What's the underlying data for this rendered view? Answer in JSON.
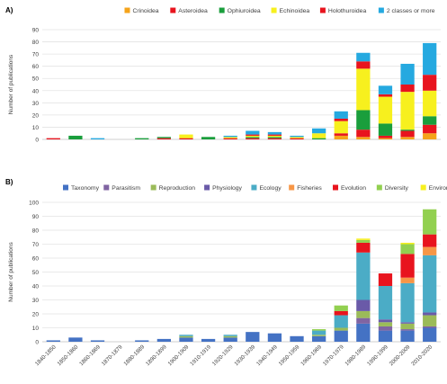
{
  "chart_data": [
    {
      "type": "bar",
      "stacked": true,
      "panel_label": "A)",
      "ylabel": "Number of publications",
      "ylim": [
        0,
        90
      ],
      "yticks": [
        0,
        10,
        20,
        30,
        40,
        50,
        60,
        70,
        80,
        90
      ],
      "grid": true,
      "legend_position": "top-right",
      "categories": [
        "1840-1850",
        "1850-1860",
        "1860-1869",
        "1870-1879",
        "1880-1889",
        "1890-1899",
        "1900-1909",
        "1910-1919",
        "1920-1929",
        "1930-1939",
        "1940-1949",
        "1950-1959",
        "1960-1969",
        "1970-1979",
        "1980-1989",
        "1990-1999",
        "2000-2009",
        "2010-2020"
      ],
      "series": [
        {
          "name": "Crinoidea",
          "color": "#f5a31a",
          "values": [
            0,
            0,
            0,
            0,
            0,
            0,
            0,
            0,
            0,
            0,
            0,
            0,
            0,
            3,
            2,
            1,
            2,
            5
          ]
        },
        {
          "name": "Asteroidea",
          "color": "#e8141e",
          "values": [
            1,
            0,
            0,
            0,
            0,
            1,
            1,
            0,
            1,
            1,
            1,
            1,
            0,
            2,
            6,
            2,
            5,
            7
          ]
        },
        {
          "name": "Ophiuroidea",
          "color": "#1a9e3c",
          "values": [
            0,
            3,
            0,
            0,
            1,
            1,
            0,
            2,
            0,
            1,
            1,
            0,
            1,
            0,
            16,
            10,
            1,
            7
          ]
        },
        {
          "name": "Echinoidea",
          "color": "#f7f01e",
          "values": [
            0,
            0,
            0,
            0,
            0,
            0,
            3,
            0,
            1,
            1,
            1,
            1,
            4,
            10,
            34,
            22,
            31,
            21
          ]
        },
        {
          "name": "Holothuroidea",
          "color": "#e8141e",
          "values": [
            0,
            0,
            0,
            0,
            0,
            0,
            0,
            0,
            0,
            1,
            1,
            0,
            0,
            2,
            6,
            2,
            6,
            13
          ]
        },
        {
          "name": "2 classes or more",
          "color": "#25a9e0",
          "values": [
            0,
            0,
            1,
            0,
            0,
            0,
            0,
            0,
            1,
            3,
            2,
            1,
            4,
            6,
            7,
            7,
            17,
            26
          ]
        }
      ]
    },
    {
      "type": "bar",
      "stacked": true,
      "panel_label": "B)",
      "ylabel": "Number of publications",
      "ylim": [
        0,
        100
      ],
      "yticks": [
        0,
        10,
        20,
        30,
        40,
        50,
        60,
        70,
        80,
        90,
        100
      ],
      "grid": true,
      "legend_position": "top",
      "categories": [
        "1840-1850",
        "1850-1860",
        "1860-1869",
        "1870-1879",
        "1880-1889",
        "1890-1899",
        "1900-1909",
        "1910-1919",
        "1920-1929",
        "1930-1939",
        "1940-1949",
        "1950-1959",
        "1960-1969",
        "1970-1979",
        "1980-1989",
        "1990-1999",
        "2000-2009",
        "2010-2020"
      ],
      "series": [
        {
          "name": "Taxonomy",
          "color": "#4472c4",
          "values": [
            1,
            3,
            1,
            0,
            1,
            2,
            3,
            2,
            3,
            7,
            6,
            4,
            4,
            8,
            13,
            8,
            8,
            10
          ]
        },
        {
          "name": "Parasitism",
          "color": "#8064a2",
          "values": [
            0,
            0,
            0,
            0,
            0,
            0,
            0,
            0,
            0,
            0,
            0,
            0,
            0,
            0,
            4,
            3,
            1,
            1
          ]
        },
        {
          "name": "Reproduction",
          "color": "#9bbb59",
          "values": [
            0,
            0,
            0,
            0,
            0,
            0,
            1,
            0,
            1,
            0,
            0,
            0,
            1,
            2,
            5,
            3,
            4,
            8
          ]
        },
        {
          "name": "Physiology",
          "color": "#6a5aa8",
          "values": [
            0,
            0,
            0,
            0,
            0,
            0,
            0,
            0,
            0,
            0,
            0,
            0,
            0,
            0,
            8,
            2,
            1,
            2
          ]
        },
        {
          "name": "Ecology",
          "color": "#4bacc6",
          "values": [
            0,
            0,
            0,
            0,
            0,
            0,
            1,
            0,
            1,
            0,
            0,
            0,
            3,
            9,
            34,
            24,
            28,
            41
          ]
        },
        {
          "name": "Fisheries",
          "color": "#f79646",
          "values": [
            0,
            0,
            0,
            0,
            0,
            0,
            0,
            0,
            0,
            0,
            0,
            0,
            0,
            0,
            0,
            0,
            4,
            6
          ]
        },
        {
          "name": "Evolution",
          "color": "#e8141e",
          "values": [
            0,
            0,
            0,
            0,
            0,
            0,
            0,
            0,
            0,
            0,
            0,
            0,
            0,
            3,
            7,
            9,
            17,
            9
          ]
        },
        {
          "name": "Diversity",
          "color": "#92d050",
          "values": [
            0,
            0,
            0,
            0,
            0,
            0,
            0,
            0,
            0,
            0,
            0,
            0,
            1,
            4,
            2,
            0,
            7,
            18
          ]
        },
        {
          "name": "Environmental Education",
          "color": "#f7f01e",
          "values": [
            0,
            0,
            0,
            0,
            0,
            0,
            0,
            0,
            0,
            0,
            0,
            0,
            0,
            0,
            1,
            0,
            1,
            0
          ]
        }
      ]
    }
  ]
}
